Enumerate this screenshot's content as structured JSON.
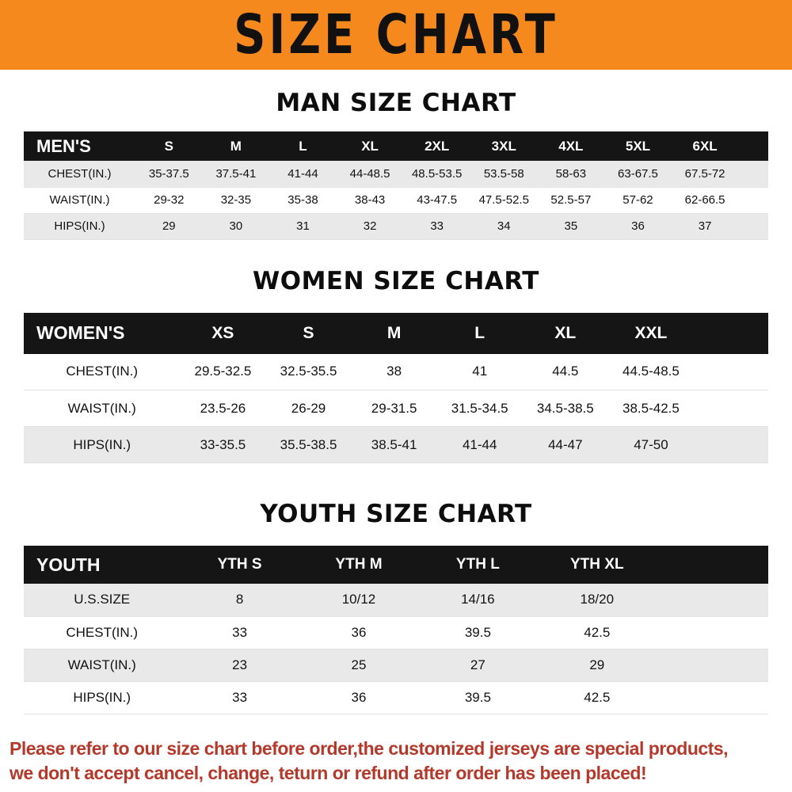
{
  "banner": {
    "title": "SIZE CHART"
  },
  "sections": [
    {
      "heading": "MAN SIZE CHART",
      "table": {
        "header": [
          "MEN'S",
          "S",
          "M",
          "L",
          "XL",
          "2XL",
          "3XL",
          "4XL",
          "5XL",
          "6XL"
        ],
        "rows": [
          [
            "CHEST(IN.)",
            "35-37.5",
            "37.5-41",
            "41-44",
            "44-48.5",
            "48.5-53.5",
            "53.5-58",
            "58-63",
            "63-67.5",
            "67.5-72"
          ],
          [
            "WAIST(IN.)",
            "29-32",
            "32-35",
            "35-38",
            "38-43",
            "43-47.5",
            "47.5-52.5",
            "52.5-57",
            "57-62",
            "62-66.5"
          ],
          [
            "HIPS(IN.)",
            "29",
            "30",
            "31",
            "32",
            "33",
            "34",
            "35",
            "36",
            "37"
          ]
        ]
      }
    },
    {
      "heading": "WOMEN SIZE CHART",
      "table": {
        "header": [
          "WOMEN'S",
          "XS",
          "S",
          "M",
          "L",
          "XL",
          "XXL"
        ],
        "rows": [
          [
            "CHEST(IN.)",
            "29.5-32.5",
            "32.5-35.5",
            "38",
            "41",
            "44.5",
            "44.5-48.5"
          ],
          [
            "WAIST(IN.)",
            "23.5-26",
            "26-29",
            "29-31.5",
            "31.5-34.5",
            "34.5-38.5",
            "38.5-42.5"
          ],
          [
            "HIPS(IN.)",
            "33-35.5",
            "35.5-38.5",
            "38.5-41",
            "41-44",
            "44-47",
            "47-50"
          ]
        ]
      }
    },
    {
      "heading": "YOUTH SIZE CHART",
      "table": {
        "header": [
          "YOUTH",
          "YTH S",
          "YTH M",
          "YTH L",
          "YTH XL"
        ],
        "rows": [
          [
            "U.S.SIZE",
            "8",
            "10/12",
            "14/16",
            "18/20"
          ],
          [
            "CHEST(IN.)",
            "33",
            "36",
            "39.5",
            "42.5"
          ],
          [
            "WAIST(IN.)",
            "23",
            "25",
            "27",
            "29"
          ],
          [
            "HIPS(IN.)",
            "33",
            "36",
            "39.5",
            "42.5"
          ]
        ]
      }
    }
  ],
  "footer": {
    "lines": [
      "Please refer to our size chart before order,the customized jerseys are special products,",
      "we don't accept cancel, change, teturn or refund after order has been placed!"
    ]
  },
  "colors": {
    "banner-orange": "#F6891E",
    "header-black": "#151515",
    "row-shade": "#E9E9E9",
    "notice-red": "#B5392B",
    "text-black": "#121212"
  }
}
